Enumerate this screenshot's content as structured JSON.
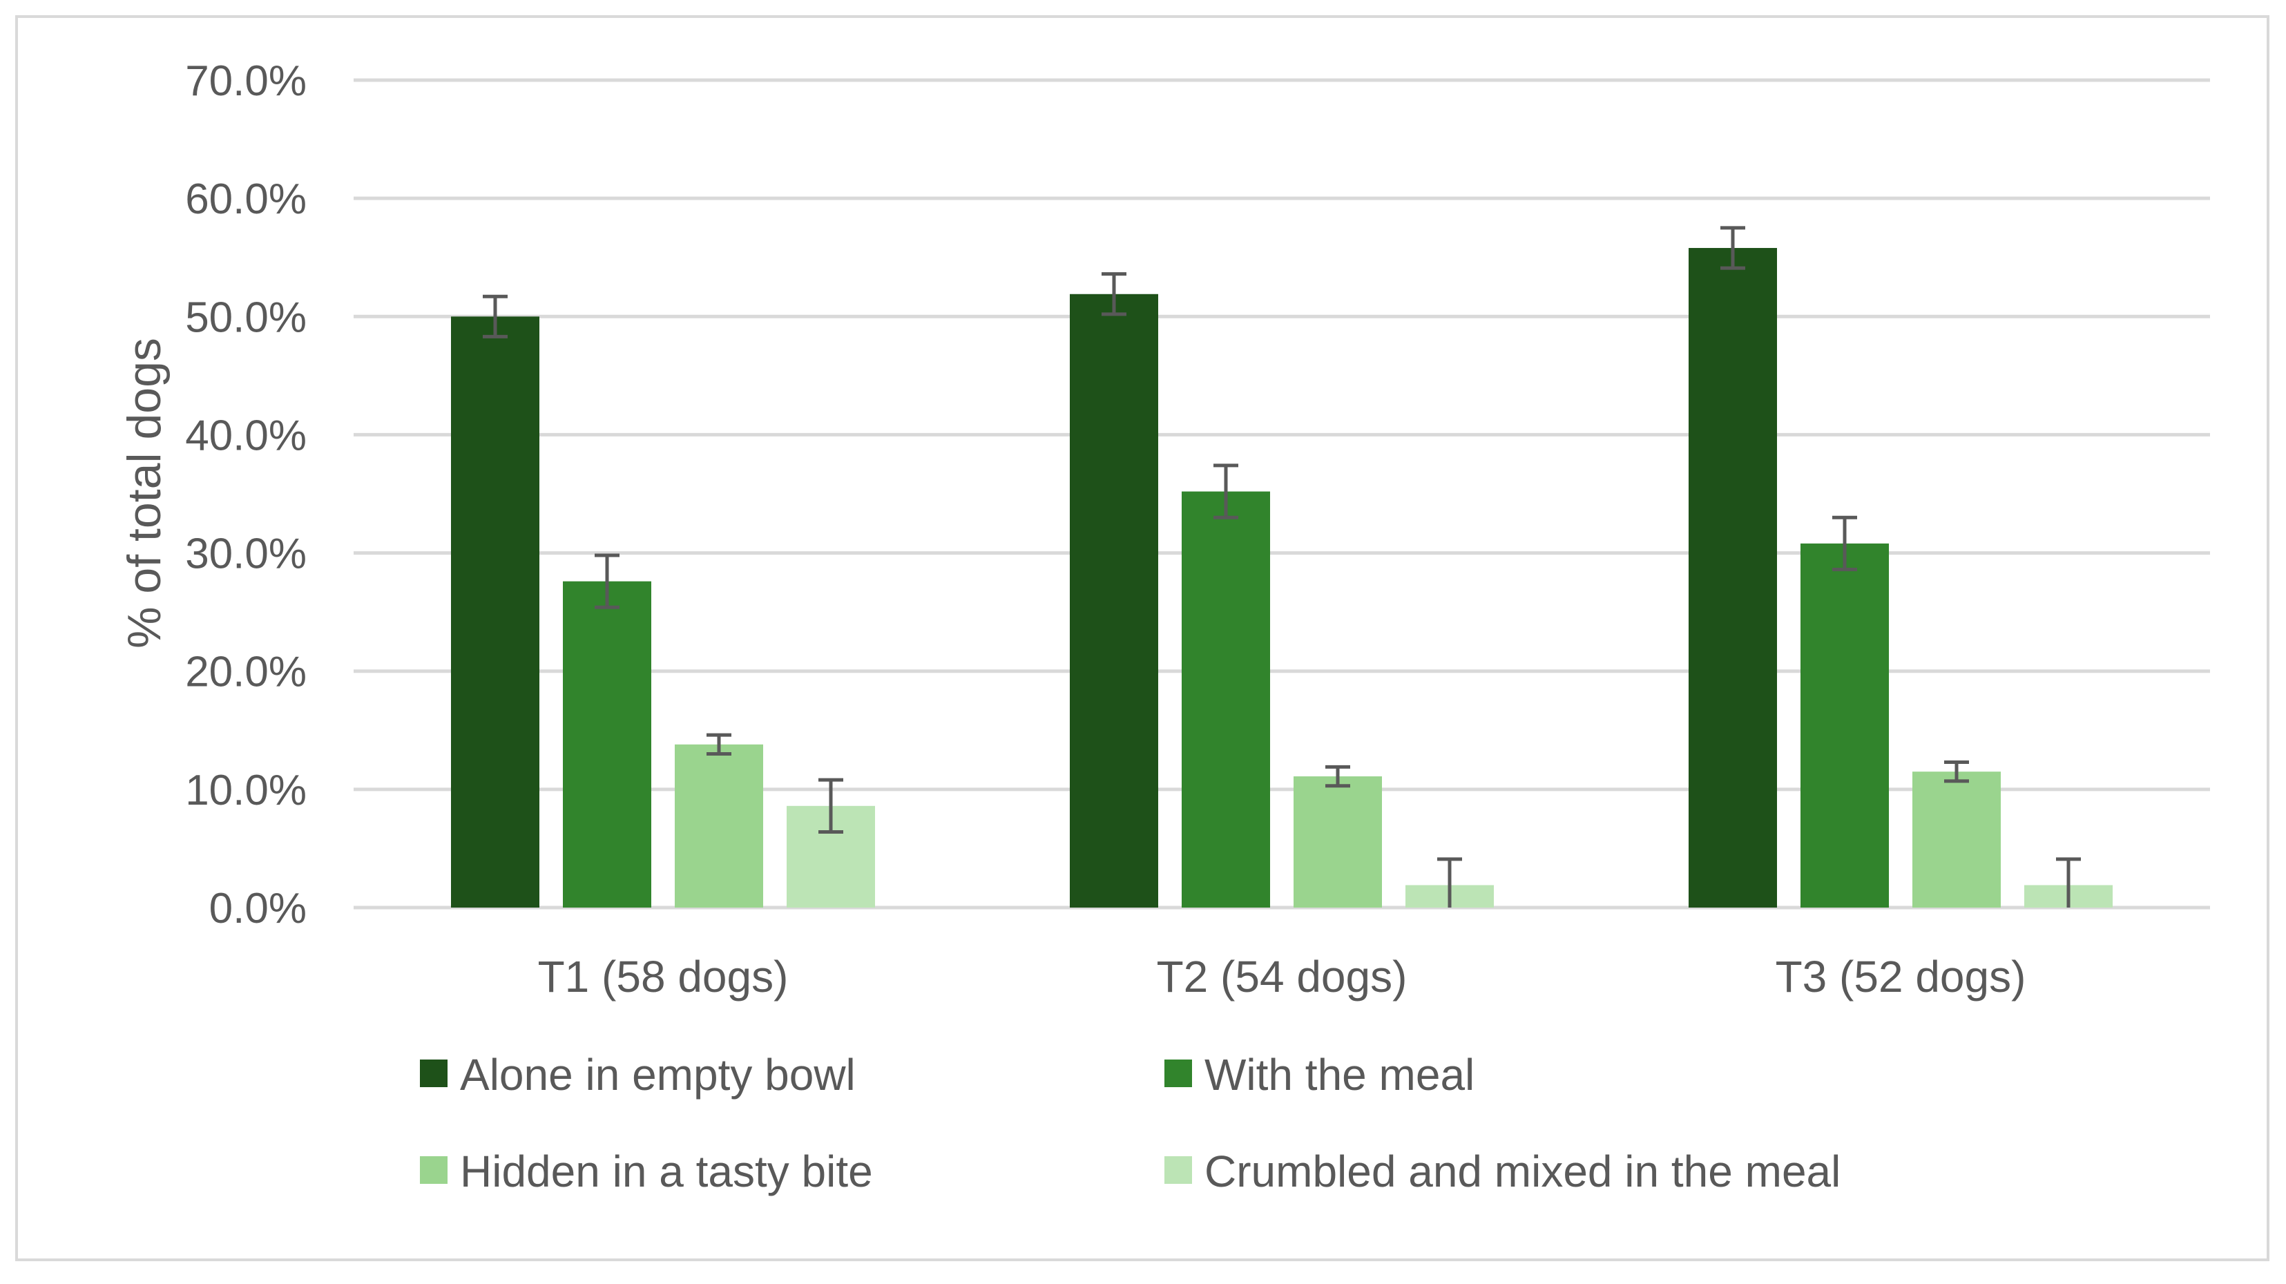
{
  "chart_data": {
    "type": "bar",
    "title": "",
    "xlabel": "",
    "ylabel": "% of total dogs",
    "ylim": [
      0,
      70
    ],
    "yticks": [
      "0.0%",
      "10.0%",
      "20.0%",
      "30.0%",
      "40.0%",
      "50.0%",
      "60.0%",
      "70.0%"
    ],
    "ytick_values": [
      0,
      10,
      20,
      30,
      40,
      50,
      60,
      70
    ],
    "grid": true,
    "legend_position": "bottom",
    "categories": [
      "T1 (58 dogs)",
      "T2 (54 dogs)",
      "T3 (52 dogs)"
    ],
    "series": [
      {
        "name": "Alone in empty bowl",
        "color": "#1e5119",
        "values": [
          50.0,
          51.9,
          55.8
        ],
        "error": [
          1.7,
          1.7,
          1.7
        ]
      },
      {
        "name": "With the meal",
        "color": "#31842c",
        "values": [
          27.6,
          35.2,
          30.8
        ],
        "error": [
          2.2,
          2.2,
          2.2
        ]
      },
      {
        "name": "Hidden in a tasty bite",
        "color": "#9ad48e",
        "values": [
          13.8,
          11.1,
          11.5
        ],
        "error": [
          0.8,
          0.8,
          0.8
        ]
      },
      {
        "name": "Crumbled and mixed in the meal",
        "color": "#bce4b5",
        "values": [
          8.6,
          1.9,
          1.9
        ],
        "error": [
          2.2,
          2.2,
          2.2
        ]
      }
    ],
    "colors": {
      "gridline": "#d9d9d9",
      "axis_text": "#595959",
      "error_bar": "#595959",
      "frame": "#d9d9d9"
    }
  }
}
